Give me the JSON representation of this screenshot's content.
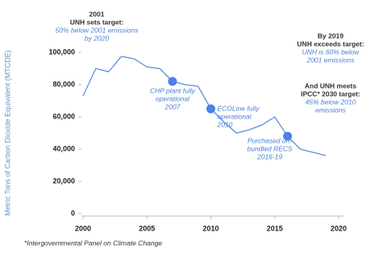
{
  "chart_data": {
    "type": "line",
    "y_label": "Metric Tons of Carbon Dioxide Equivalent (MTCDE)",
    "x": [
      2000,
      2001,
      2002,
      2003,
      2004,
      2005,
      2006,
      2007,
      2008,
      2009,
      2010,
      2011,
      2012,
      2013,
      2014,
      2015,
      2016,
      2017,
      2018,
      2019
    ],
    "values": [
      73000,
      90000,
      88000,
      97500,
      96000,
      91000,
      90000,
      82000,
      80000,
      79000,
      65000,
      57000,
      50000,
      52000,
      55000,
      60000,
      48000,
      40000,
      38000,
      36000
    ],
    "color": "#5b8fdf",
    "xlim": [
      2000,
      2020
    ],
    "xticks": [
      2000,
      2005,
      2010,
      2015,
      2020
    ],
    "ylim": [
      0,
      100000
    ],
    "yticks": [
      0,
      {
        "value": 20000,
        "label": "20,000"
      },
      {
        "value": 40000,
        "label": "40,000"
      },
      {
        "value": 60000,
        "label": "60,000"
      },
      {
        "value": 80000,
        "label": "80,000"
      },
      {
        "value": 100000,
        "label": "100,000"
      }
    ],
    "point_notes": [
      {
        "x": 2007,
        "italic": [
          "CHP plant fully",
          "operational",
          "2007"
        ]
      },
      {
        "x": 2010,
        "italic": [
          "ECOLine fully",
          "operational",
          "2010"
        ]
      },
      {
        "x": 2016,
        "italic": [
          "Purchased un-",
          "bundled RECS",
          "2016-19"
        ]
      }
    ],
    "notes": [
      {
        "bold": [
          "2001",
          "UNH sets target:"
        ],
        "italic": [
          "50% below 2001 emissions",
          "by 2020"
        ]
      },
      {
        "bold": [
          "By 2019",
          "UNH exceeds target:"
        ],
        "italic": [
          "UNH is 60% below",
          "2001 emissions"
        ]
      },
      {
        "bold": [
          "And UNH meets",
          "IPCC* 2030 target:"
        ],
        "italic": [
          "45% below 2010",
          "emissions"
        ]
      }
    ],
    "footnote": "*Intergovernmental Panel on Climate Change"
  }
}
